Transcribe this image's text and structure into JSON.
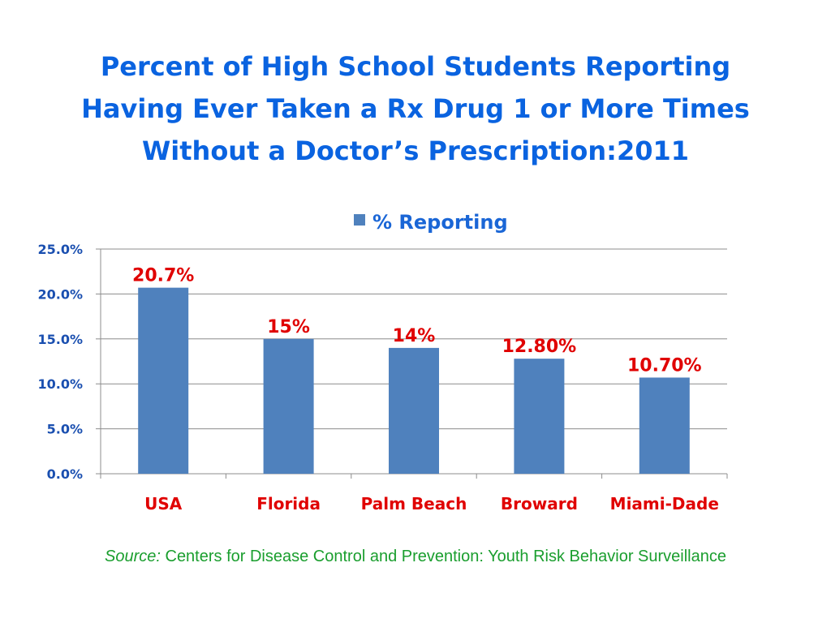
{
  "title_lines": [
    "Percent of High School Students Reporting",
    "Having Ever Taken a Rx Drug 1 or More Times",
    "Without a Doctor’s Prescription:2011"
  ],
  "source": {
    "prefix": "Source:",
    "text": " Centers for Disease Control and Prevention: Youth Risk Behavior Surveillance"
  },
  "colors": {
    "title": "#0a63e0",
    "bar": "#4f81bd",
    "data_label": "#e00000",
    "category_label": "#e00000",
    "axis_label": "#1a4fb0",
    "source": "#1a9e2e",
    "gridline": "#8c8c8c"
  },
  "chart_data": {
    "type": "bar",
    "categories": [
      "USA",
      "Florida",
      "Palm Beach",
      "Broward",
      "Miami-Dade"
    ],
    "series": [
      {
        "name": "% Reporting",
        "values": [
          20.7,
          15,
          14,
          12.8,
          10.7
        ],
        "data_labels": [
          "20.7%",
          "15%",
          "14%",
          "12.80%",
          "10.70%"
        ]
      }
    ],
    "ylim": [
      0,
      25
    ],
    "yticks": [
      0,
      5,
      10,
      15,
      20,
      25
    ],
    "ytick_labels": [
      "0.0%",
      "5.0%",
      "10.0%",
      "15.0%",
      "20.0%",
      "25.0%"
    ],
    "grid": true,
    "legend_position": "top"
  }
}
